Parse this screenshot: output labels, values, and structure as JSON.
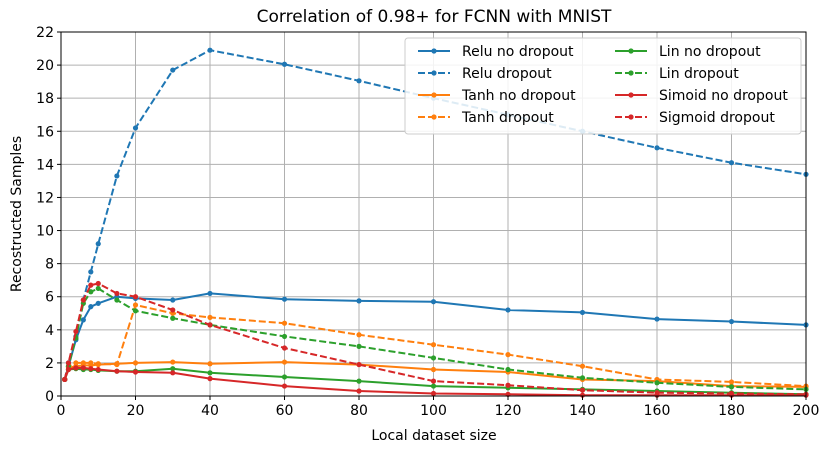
{
  "chart_data": {
    "type": "line",
    "title": "Correlation of 0.98+ for FCNN with MNIST",
    "xlabel": "Local dataset size",
    "ylabel": "Recostructed Samples",
    "xlim": [
      0,
      200
    ],
    "ylim": [
      0,
      22
    ],
    "xticks": [
      0,
      20,
      40,
      60,
      80,
      100,
      120,
      140,
      160,
      180,
      200
    ],
    "yticks": [
      0,
      2,
      4,
      6,
      8,
      10,
      12,
      14,
      16,
      18,
      20,
      22
    ],
    "grid": true,
    "legend_position": "top-right",
    "x": [
      1,
      2,
      4,
      6,
      8,
      10,
      15,
      20,
      30,
      40,
      60,
      80,
      100,
      120,
      140,
      160,
      180,
      200
    ],
    "series": [
      {
        "name": "Relu no dropout",
        "color": "#1f77b4",
        "dashed": false,
        "values": [
          1.0,
          1.8,
          3.4,
          4.6,
          5.4,
          5.6,
          6.0,
          5.9,
          5.8,
          6.2,
          5.85,
          5.75,
          5.7,
          5.2,
          5.05,
          4.65,
          4.5,
          4.3
        ]
      },
      {
        "name": "Relu dropout",
        "color": "#1f77b4",
        "dashed": true,
        "values": [
          1.0,
          2.0,
          3.6,
          5.8,
          7.5,
          9.2,
          13.3,
          16.2,
          19.7,
          20.9,
          20.05,
          19.05,
          18.0,
          17.0,
          16.0,
          15.0,
          14.1,
          13.4
        ]
      },
      {
        "name": "Tanh no dropout",
        "color": "#ff7f0e",
        "dashed": false,
        "values": [
          1.0,
          1.7,
          1.8,
          1.85,
          1.85,
          1.9,
          1.95,
          2.0,
          2.05,
          1.95,
          2.05,
          1.9,
          1.6,
          1.45,
          1.0,
          0.9,
          0.6,
          0.55
        ]
      },
      {
        "name": "Tanh dropout",
        "color": "#ff7f0e",
        "dashed": true,
        "values": [
          1.0,
          1.8,
          2.0,
          2.0,
          2.0,
          1.95,
          1.9,
          5.5,
          5.0,
          4.75,
          4.4,
          3.7,
          3.1,
          2.5,
          1.8,
          1.0,
          0.85,
          0.6
        ]
      },
      {
        "name": "Lin no dropout",
        "color": "#2ca02c",
        "dashed": false,
        "values": [
          1.0,
          1.6,
          1.65,
          1.6,
          1.6,
          1.55,
          1.5,
          1.5,
          1.65,
          1.4,
          1.15,
          0.9,
          0.6,
          0.5,
          0.4,
          0.3,
          0.2,
          0.1
        ]
      },
      {
        "name": "Lin dropout",
        "color": "#2ca02c",
        "dashed": true,
        "values": [
          1.0,
          1.8,
          3.5,
          5.6,
          6.3,
          6.5,
          5.8,
          5.15,
          4.7,
          4.3,
          3.6,
          3.0,
          2.3,
          1.6,
          1.1,
          0.8,
          0.55,
          0.4
        ]
      },
      {
        "name": "Simoid no dropout",
        "color": "#d62728",
        "dashed": false,
        "values": [
          1.0,
          1.6,
          1.7,
          1.7,
          1.65,
          1.6,
          1.5,
          1.45,
          1.4,
          1.05,
          0.6,
          0.3,
          0.15,
          0.1,
          0.05,
          0.05,
          0.05,
          0.05
        ]
      },
      {
        "name": "Sigmoid dropout",
        "color": "#d62728",
        "dashed": true,
        "values": [
          1.0,
          2.0,
          3.9,
          5.8,
          6.7,
          6.8,
          6.2,
          6.0,
          5.2,
          4.3,
          2.9,
          1.9,
          0.9,
          0.65,
          0.35,
          0.2,
          0.15,
          0.1
        ]
      }
    ]
  }
}
